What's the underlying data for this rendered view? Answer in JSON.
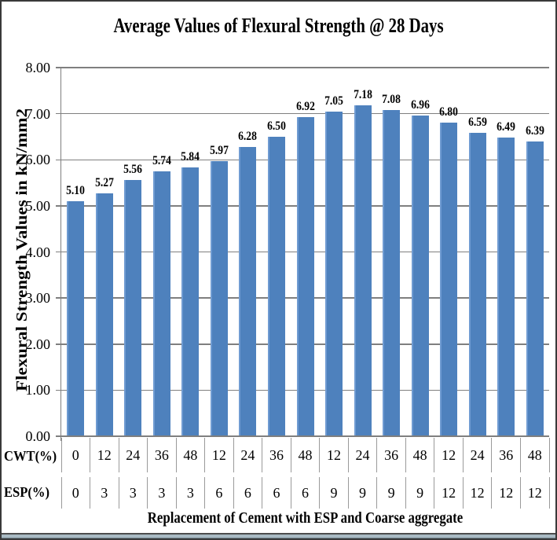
{
  "chart_data": {
    "type": "bar",
    "title": "Average Values of Flexural Strength @ 28 Days",
    "ylabel": "Flexural Strength Values in kN/mm2",
    "xlabel": "Replacement of Cement with ESP and Coarse aggregate",
    "ylim": [
      0,
      8
    ],
    "ytick_labels": [
      "0.00",
      "1.00",
      "2.00",
      "3.00",
      "4.00",
      "5.00",
      "6.00",
      "7.00",
      "8.00"
    ],
    "grid": true,
    "legend": "none",
    "bar_color": "#4e81bd",
    "bar_edge_color": "#6f9bd2",
    "grid_color": "#7f7f7f",
    "values": [
      5.1,
      5.27,
      5.56,
      5.74,
      5.84,
      5.97,
      6.28,
      6.5,
      6.92,
      7.05,
      7.18,
      7.08,
      6.96,
      6.8,
      6.59,
      6.49,
      6.39
    ],
    "value_labels": [
      "5.10",
      "5.27",
      "5.56",
      "5.74",
      "5.84",
      "5.97",
      "6.28",
      "6.50",
      "6.92",
      "7.05",
      "7.18",
      "7.08",
      "6.96",
      "6.80",
      "6.59",
      "6.49",
      "6.39"
    ],
    "category_rows": [
      {
        "label": "CWT(%)",
        "values": [
          "0",
          "12",
          "24",
          "36",
          "48",
          "12",
          "24",
          "36",
          "48",
          "12",
          "24",
          "36",
          "48",
          "12",
          "24",
          "36",
          "48"
        ]
      },
      {
        "label": "ESP(%)",
        "values": [
          "0",
          "3",
          "3",
          "3",
          "3",
          "6",
          "6",
          "6",
          "6",
          "9",
          "9",
          "9",
          "9",
          "12",
          "12",
          "12",
          "12"
        ]
      }
    ]
  }
}
